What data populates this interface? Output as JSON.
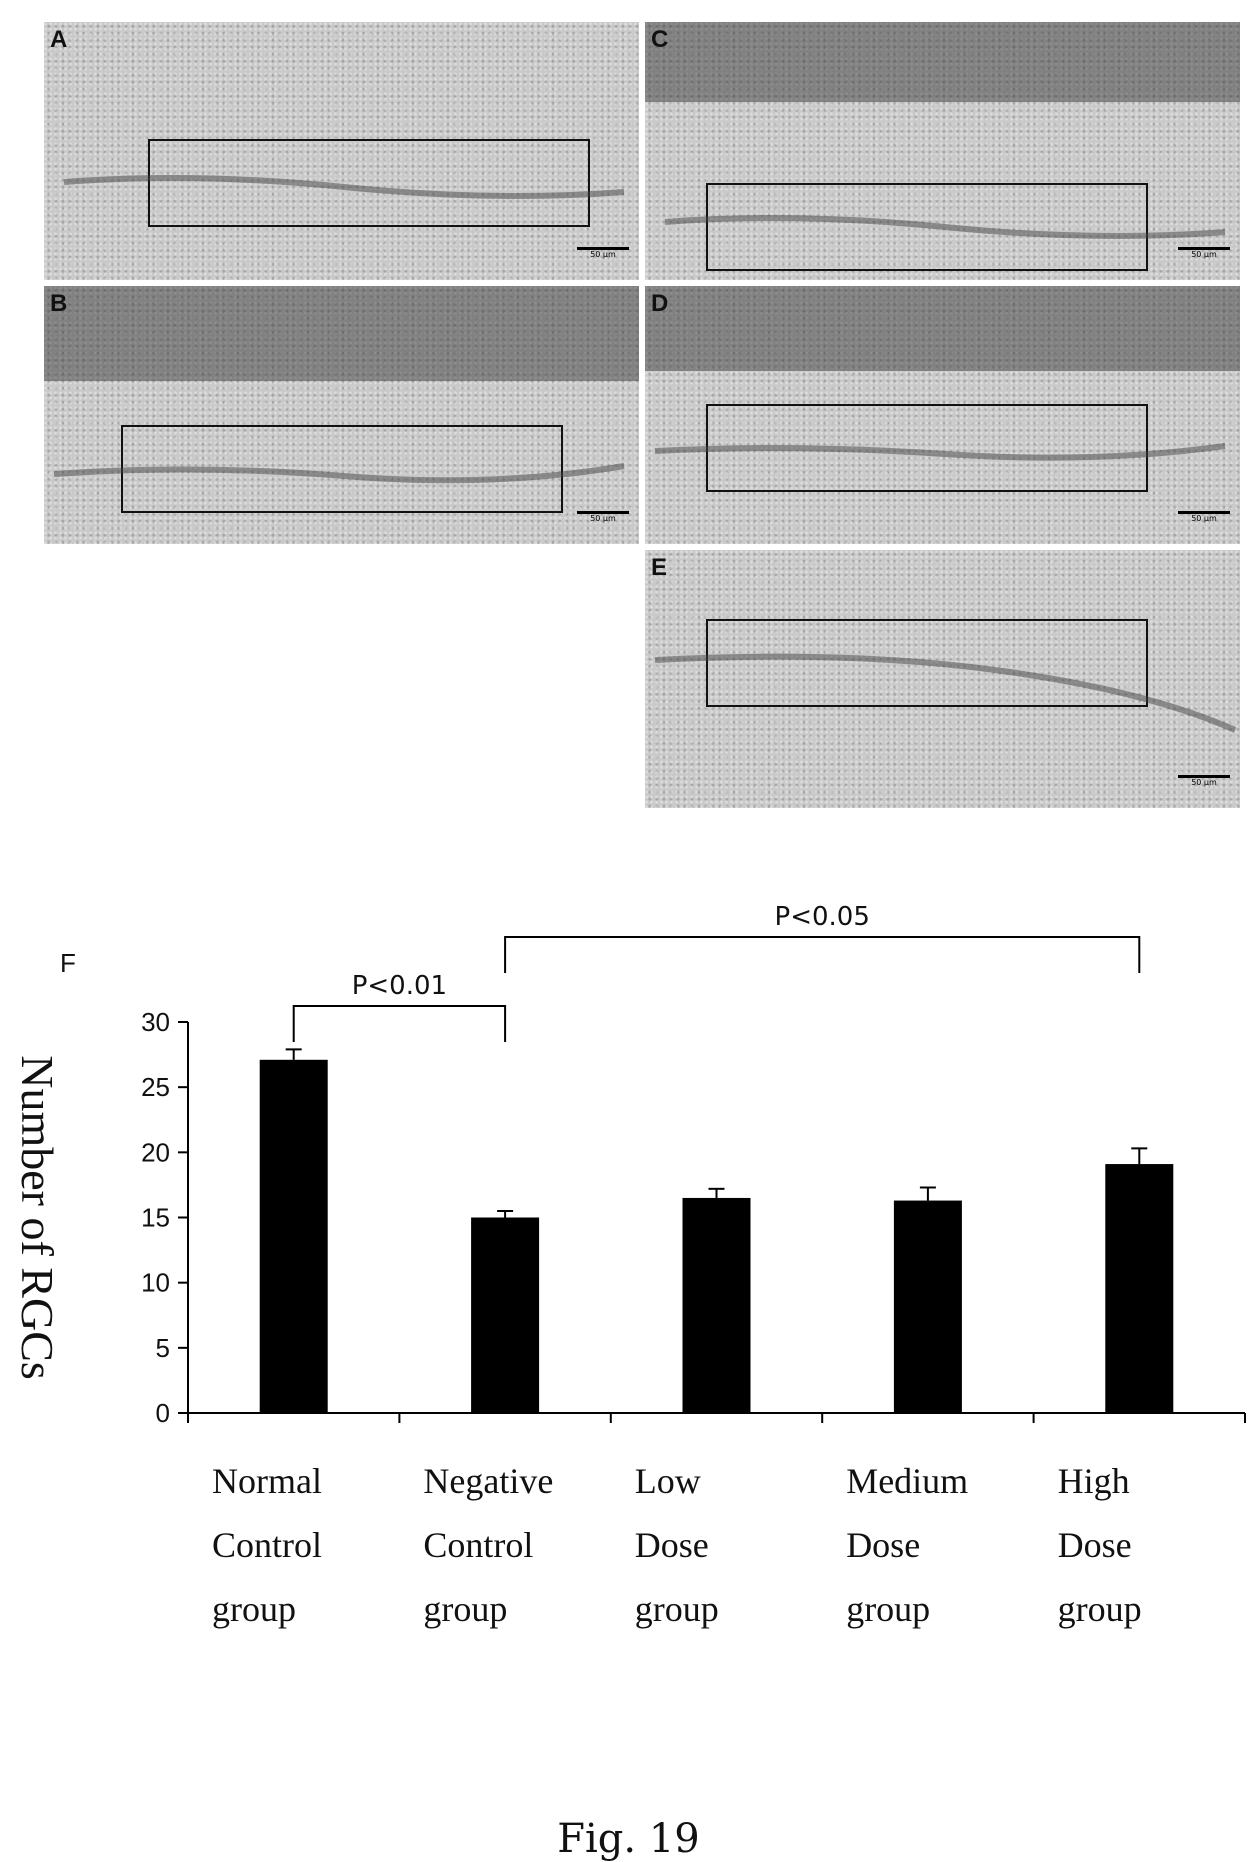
{
  "panels": [
    {
      "label": "A",
      "scale": "50 µm"
    },
    {
      "label": "C",
      "scale": "50 µm"
    },
    {
      "label": "B",
      "scale": "50 µm"
    },
    {
      "label": "D",
      "scale": "50 µm"
    },
    {
      "label": "E",
      "scale": "50 µm"
    }
  ],
  "figure_caption": "Fig. 19",
  "chart_data": {
    "type": "bar",
    "panel_label": "F",
    "ylabel": "Number of RGCs",
    "ylim": [
      0,
      30
    ],
    "yticks": [
      0,
      5,
      10,
      15,
      20,
      25,
      30
    ],
    "categories": [
      [
        "Normal",
        "Control",
        "group"
      ],
      [
        "Negative",
        "Control",
        "group"
      ],
      [
        "Low",
        "Dose",
        "group"
      ],
      [
        "Medium",
        "Dose",
        "group"
      ],
      [
        "High",
        "Dose",
        "group"
      ]
    ],
    "values": [
      27.1,
      15.0,
      16.5,
      16.3,
      19.1
    ],
    "errors": [
      0.8,
      0.5,
      0.7,
      1.0,
      1.2
    ],
    "bar_color": "#000000",
    "significance": [
      {
        "from": 0,
        "to": 1,
        "text": "P<0.01"
      },
      {
        "from": 1,
        "to": 4,
        "text": "P<0.05"
      }
    ]
  }
}
